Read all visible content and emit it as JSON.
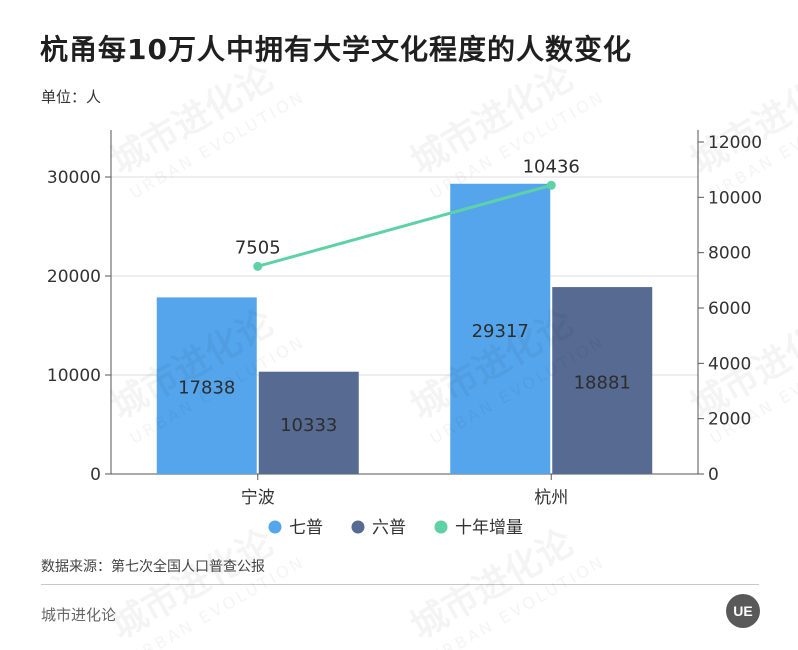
{
  "title": "杭甬每10万人中拥有大学文化程度的人数变化",
  "unit": "单位：人",
  "source": "数据来源：第七次全国人口普查公报",
  "brand": "城市进化论",
  "logo_text": "UE",
  "watermark": {
    "cn": "城市进化论",
    "en": "URBAN EVOLUTION"
  },
  "colors": {
    "seventh": "#55A5EC",
    "sixth": "#566A92",
    "growth": "#5ED2A6"
  },
  "chart_data": {
    "type": "bar",
    "categories": [
      "宁波",
      "杭州"
    ],
    "series": [
      {
        "name": "七普",
        "type": "bar",
        "axis": "left",
        "values": [
          17838,
          29317
        ]
      },
      {
        "name": "六普",
        "type": "bar",
        "axis": "left",
        "values": [
          10333,
          18881
        ]
      },
      {
        "name": "十年增量",
        "type": "line",
        "axis": "right",
        "values": [
          7505,
          10436
        ]
      }
    ],
    "y_left": {
      "min": 0,
      "max": 30000,
      "ticks": [
        0,
        10000,
        20000,
        30000
      ]
    },
    "y_right": {
      "min": 0,
      "max": 12000,
      "ticks": [
        0,
        2000,
        4000,
        6000,
        8000,
        10000,
        12000
      ]
    },
    "legend": "bottom",
    "grid": true
  }
}
